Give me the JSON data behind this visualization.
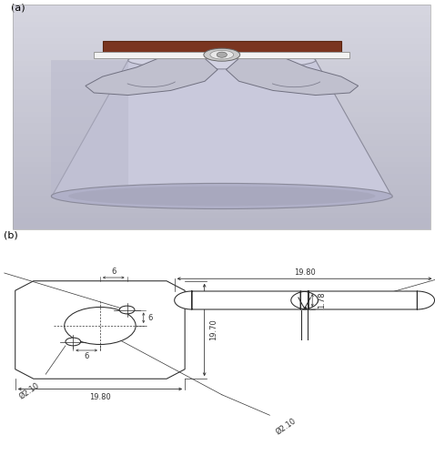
{
  "fig_width": 4.78,
  "fig_height": 5.0,
  "dpi": 100,
  "bg_color": "#ffffff",
  "panel_a_label": "(a)",
  "panel_b_label": "(b)",
  "line_color": "#2a2a2a",
  "dim_color": "#333333",
  "dim_fontsize": 6.0,
  "cone_face": "#c9c9dc",
  "cone_top_face": "#d2d2e2",
  "cone_bot_face": "#b0b0c8",
  "cone_edge": "#8a8a9a",
  "bg_top": "#b8b8c8",
  "bg_bot": "#e0e0e8",
  "pcb_color": "#7a3520",
  "connector_color": "#f0f0f0",
  "wing_face": "#c0c0ce",
  "wing_edge": "#707080"
}
